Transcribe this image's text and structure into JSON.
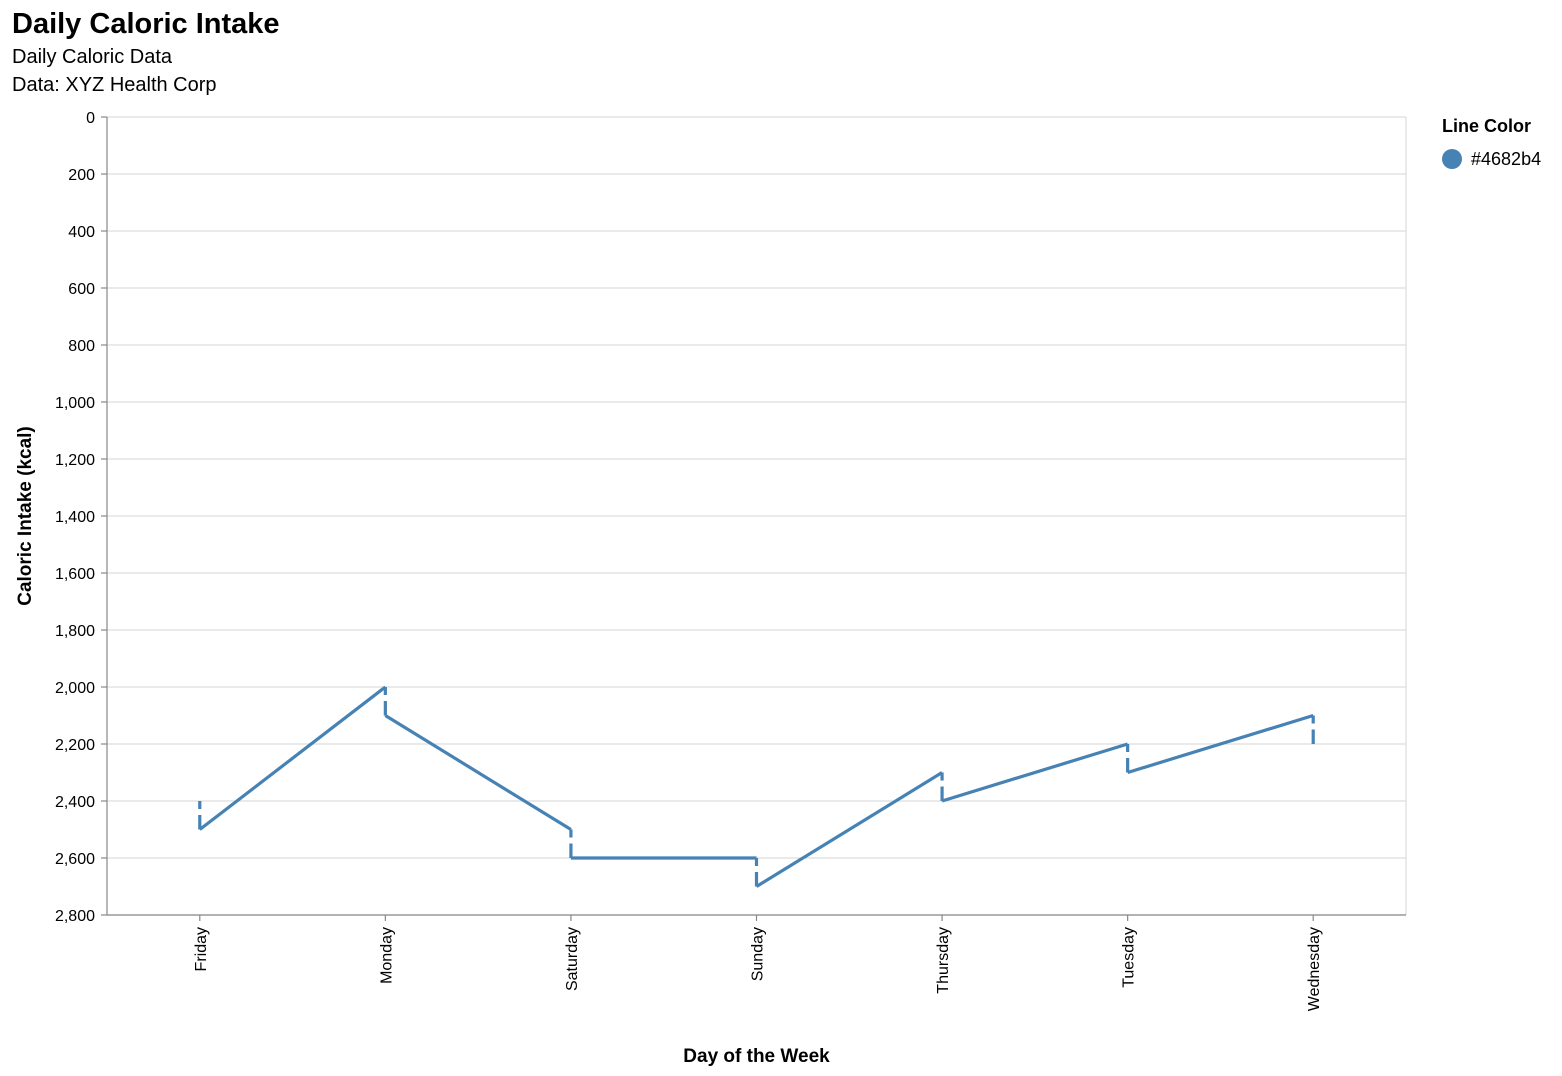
{
  "title": "Daily Caloric Intake",
  "subtitle_lines": [
    "Daily Caloric Data",
    "Data: XYZ Health Corp"
  ],
  "legend": {
    "title": "Line Color",
    "items": [
      {
        "label": "#4682b4",
        "color": "#4682b4"
      }
    ]
  },
  "chart_data": {
    "type": "line",
    "xlabel": "Day of the Week",
    "ylabel": "Caloric Intake (kcal)",
    "categories": [
      "Friday",
      "Monday",
      "Saturday",
      "Sunday",
      "Thursday",
      "Tuesday",
      "Wednesday"
    ],
    "y_reversed": true,
    "ylim": [
      0,
      2800
    ],
    "yticks": [
      0,
      200,
      400,
      600,
      800,
      1000,
      1200,
      1400,
      1600,
      1800,
      2000,
      2200,
      2400,
      2600,
      2800
    ],
    "grid": true,
    "legend_position": "right",
    "line_color": "#4682b4",
    "series": [
      {
        "name": "#4682b4",
        "x": [
          "Friday",
          "Friday",
          "Monday",
          "Monday",
          "Saturday",
          "Saturday",
          "Sunday",
          "Sunday",
          "Thursday",
          "Thursday",
          "Tuesday",
          "Tuesday",
          "Wednesday",
          "Wednesday"
        ],
        "y": [
          2400,
          2500,
          2000,
          2100,
          2500,
          2600,
          2600,
          2700,
          2300,
          2400,
          2200,
          2300,
          2100,
          2200
        ]
      }
    ]
  }
}
